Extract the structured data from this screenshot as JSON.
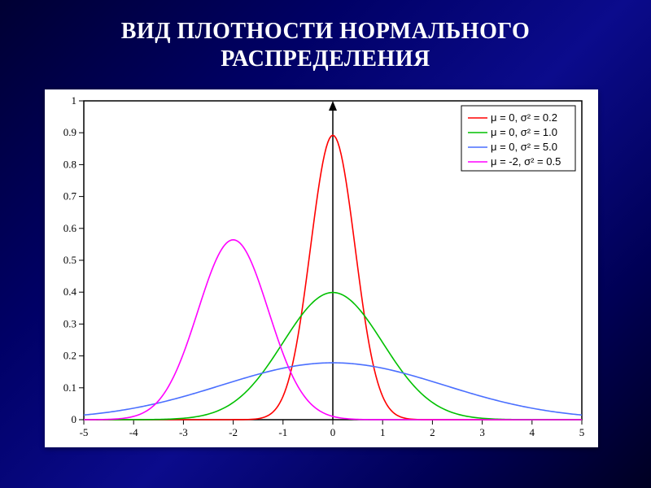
{
  "title": "ВИД ПЛОТНОСТИ НОРМАЛЬНОГО\nРАСПРЕДЕЛЕНИЯ",
  "chart": {
    "type": "line",
    "background_color": "#ffffff",
    "plot_border_color": "#000000",
    "xlim": [
      -5,
      5
    ],
    "ylim": [
      0,
      1
    ],
    "xtick_step": 1,
    "ytick_step": 0.1,
    "tick_fontsize": 13,
    "tick_color": "#000000",
    "axis_line_width": 1.5,
    "curve_line_width": 1.6,
    "series": [
      {
        "mu": 0,
        "sigma2": 0.2,
        "color": "#ff0000",
        "label": "μ =  0, σ² = 0.2"
      },
      {
        "mu": 0,
        "sigma2": 1.0,
        "color": "#00c000",
        "label": "μ =  0, σ² = 1.0"
      },
      {
        "mu": 0,
        "sigma2": 5.0,
        "color": "#4a6fff",
        "label": "μ =  0, σ² = 5.0"
      },
      {
        "mu": -2,
        "sigma2": 0.5,
        "color": "#ff00ff",
        "label": "μ = -2, σ² = 0.5"
      }
    ],
    "legend": {
      "position": "top-right",
      "fontsize": 13,
      "box_stroke": "#000000",
      "box_fill": "#ffffff",
      "sample_line_width": 1.6
    },
    "y_axis_arrow": {
      "x": 0,
      "color": "#000000",
      "width": 1.5
    }
  }
}
